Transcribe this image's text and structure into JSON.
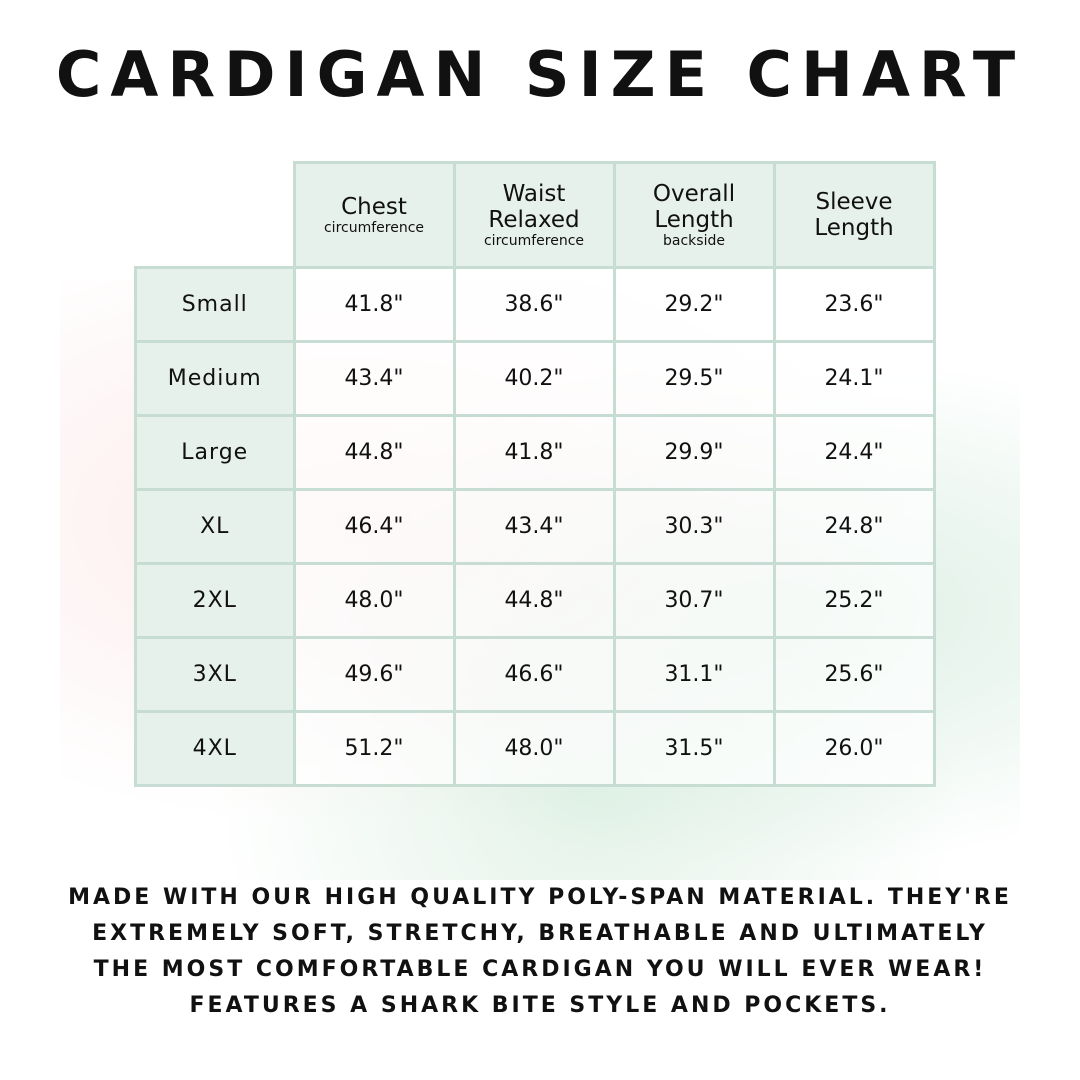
{
  "title": "CARDIGAN SIZE CHART",
  "headers": [
    {
      "main": "Chest",
      "sub": "circumference"
    },
    {
      "main": "Waist Relaxed",
      "sub": "circumference"
    },
    {
      "main": "Overall Length",
      "sub": "backside"
    },
    {
      "main": "Sleeve Length",
      "sub": ""
    }
  ],
  "rows": [
    {
      "size": "Small",
      "values": [
        "41.8\"",
        "38.6\"",
        "29.2\"",
        "23.6\""
      ]
    },
    {
      "size": "Medium",
      "values": [
        "43.4\"",
        "40.2\"",
        "29.5\"",
        "24.1\""
      ]
    },
    {
      "size": "Large",
      "values": [
        "44.8\"",
        "41.8\"",
        "29.9\"",
        "24.4\""
      ]
    },
    {
      "size": "XL",
      "values": [
        "46.4\"",
        "43.4\"",
        "30.3\"",
        "24.8\""
      ]
    },
    {
      "size": "2XL",
      "values": [
        "48.0\"",
        "44.8\"",
        "30.7\"",
        "25.2\""
      ]
    },
    {
      "size": "3XL",
      "values": [
        "49.6\"",
        "46.6\"",
        "31.1\"",
        "25.6\""
      ]
    },
    {
      "size": "4XL",
      "values": [
        "51.2\"",
        "48.0\"",
        "31.5\"",
        "26.0\""
      ]
    }
  ],
  "footer": [
    "Made with our high quality poly-span material. They're",
    "extremely soft, stretchy, breathable and ultimately",
    "the most comfortable cardigan you will ever wear!",
    "Features a shark bite style and pockets."
  ],
  "colors": {
    "header_bg": "#e7f1ec",
    "border": "#c7ddd3"
  }
}
